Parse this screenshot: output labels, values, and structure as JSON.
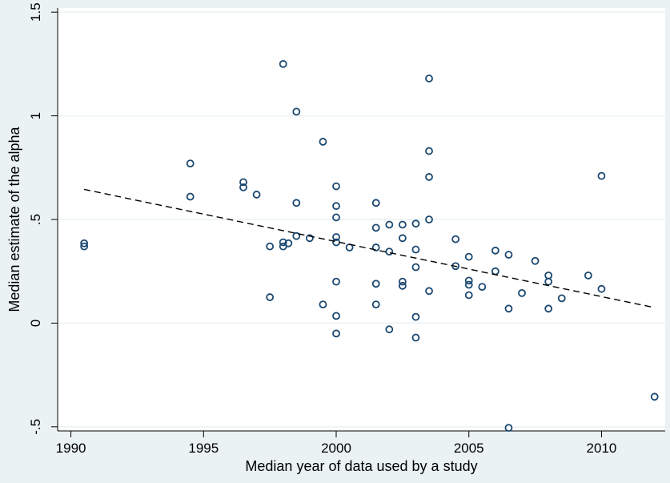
{
  "chart_data": {
    "type": "scatter",
    "title": "",
    "xlabel": "Median year of data used by a study",
    "ylabel": "Median estimate of the alpha",
    "xlim": [
      1989.5,
      2012.4
    ],
    "ylim": [
      -0.52,
      1.52
    ],
    "x_ticks": [
      1990,
      1995,
      2000,
      2005,
      2010
    ],
    "y_ticks": [
      -0.5,
      0,
      0.5,
      1,
      1.5
    ],
    "y_tick_labels": [
      "-.5",
      "0",
      ".5",
      "1",
      "1.5"
    ],
    "grid": "horizontal",
    "legend": "none",
    "colors": {
      "background": "#eaf2f3",
      "plot_background": "#ffffff",
      "grid": "#eaf2f3",
      "marker": "#1a476f",
      "fit_line": "#000000"
    },
    "series": [
      {
        "marker": "hollow-circle",
        "points": [
          [
            1990.5,
            0.385
          ],
          [
            1990.5,
            0.37
          ],
          [
            1994.5,
            0.77
          ],
          [
            1994.5,
            0.61
          ],
          [
            1996.5,
            0.68
          ],
          [
            1996.5,
            0.655
          ],
          [
            1997.0,
            0.62
          ],
          [
            1997.5,
            0.37
          ],
          [
            1997.5,
            0.125
          ],
          [
            1998.0,
            1.25
          ],
          [
            1998.0,
            0.39
          ],
          [
            1998.0,
            0.37
          ],
          [
            1998.2,
            0.385
          ],
          [
            1998.5,
            1.02
          ],
          [
            1998.5,
            0.58
          ],
          [
            1998.5,
            0.42
          ],
          [
            1999.0,
            0.41
          ],
          [
            1999.5,
            0.875
          ],
          [
            1999.5,
            0.09
          ],
          [
            2000.0,
            0.66
          ],
          [
            2000.0,
            0.565
          ],
          [
            2000.0,
            0.51
          ],
          [
            2000.0,
            0.415
          ],
          [
            2000.0,
            0.39
          ],
          [
            2000.0,
            0.2
          ],
          [
            2000.0,
            0.035
          ],
          [
            2000.0,
            -0.05
          ],
          [
            2000.5,
            0.365
          ],
          [
            2001.5,
            0.58
          ],
          [
            2001.5,
            0.46
          ],
          [
            2001.5,
            0.365
          ],
          [
            2001.5,
            0.19
          ],
          [
            2001.5,
            0.09
          ],
          [
            2002.0,
            0.475
          ],
          [
            2002.0,
            0.345
          ],
          [
            2002.0,
            -0.03
          ],
          [
            2002.5,
            0.475
          ],
          [
            2002.5,
            0.41
          ],
          [
            2002.5,
            0.2
          ],
          [
            2002.5,
            0.18
          ],
          [
            2003.0,
            0.48
          ],
          [
            2003.0,
            0.355
          ],
          [
            2003.0,
            0.27
          ],
          [
            2003.0,
            0.03
          ],
          [
            2003.0,
            -0.07
          ],
          [
            2003.5,
            1.18
          ],
          [
            2003.5,
            0.83
          ],
          [
            2003.5,
            0.705
          ],
          [
            2003.5,
            0.5
          ],
          [
            2003.5,
            0.155
          ],
          [
            2004.5,
            0.405
          ],
          [
            2004.5,
            0.275
          ],
          [
            2005.0,
            0.32
          ],
          [
            2005.0,
            0.205
          ],
          [
            2005.0,
            0.185
          ],
          [
            2005.0,
            0.135
          ],
          [
            2005.5,
            0.175
          ],
          [
            2006.0,
            0.35
          ],
          [
            2006.0,
            0.25
          ],
          [
            2006.5,
            0.33
          ],
          [
            2006.5,
            0.07
          ],
          [
            2006.5,
            -0.505
          ],
          [
            2007.0,
            0.145
          ],
          [
            2007.5,
            0.3
          ],
          [
            2008.0,
            0.23
          ],
          [
            2008.0,
            0.2
          ],
          [
            2008.0,
            0.07
          ],
          [
            2008.5,
            0.12
          ],
          [
            2009.5,
            0.23
          ],
          [
            2010.0,
            0.71
          ],
          [
            2010.0,
            0.165
          ],
          [
            2012.0,
            -0.355
          ]
        ]
      }
    ],
    "fit_line": {
      "style": "dashed",
      "x": [
        1990.5,
        2012.0
      ],
      "y": [
        0.645,
        0.075
      ]
    }
  }
}
